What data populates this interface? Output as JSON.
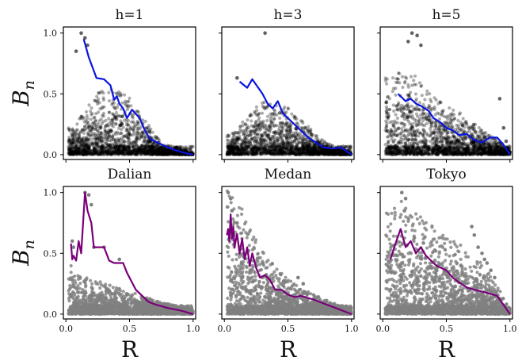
{
  "chart_data": [
    {
      "type": "scatter",
      "title": "h=1",
      "xlim": [
        -0.02,
        1.02
      ],
      "ylim": [
        -0.04,
        1.05
      ],
      "xticks": [
        0.0,
        0.5,
        1.0
      ],
      "xticklabels": [
        "",
        "",
        ""
      ],
      "yticks": [
        0.0,
        0.5,
        1.0
      ],
      "yticklabels": [
        "0.0",
        "0.5",
        "1.0"
      ],
      "xlabel": "",
      "ylabel": "B_n",
      "ylabel_main": "B",
      "ylabel_sub": "n",
      "point_color": "#000000",
      "line_color": "#0a14e0",
      "envelope_x": [
        0.05,
        0.3,
        0.5,
        0.62,
        0.75,
        1.0
      ],
      "envelope_y": [
        0.14,
        0.36,
        0.3,
        0.18,
        0.06,
        0.01
      ],
      "isolated_points": [
        [
          0.12,
          1.0
        ],
        [
          0.15,
          0.96
        ],
        [
          0.17,
          0.9
        ],
        [
          0.08,
          0.85
        ]
      ],
      "line": {
        "x": [
          0.14,
          0.18,
          0.24,
          0.3,
          0.35,
          0.38,
          0.4,
          0.42,
          0.45,
          0.48,
          0.52,
          0.58,
          0.62,
          0.66,
          0.72,
          0.8,
          0.88,
          0.95,
          1.0
        ],
        "y": [
          0.95,
          0.8,
          0.63,
          0.62,
          0.57,
          0.45,
          0.48,
          0.42,
          0.38,
          0.3,
          0.37,
          0.3,
          0.2,
          0.13,
          0.1,
          0.06,
          0.03,
          0.01,
          0.0
        ]
      }
    },
    {
      "type": "scatter",
      "title": "h=3",
      "xlim": [
        -0.02,
        1.02
      ],
      "ylim": [
        -0.04,
        1.05
      ],
      "xticks": [
        0.0,
        0.5,
        1.0
      ],
      "xticklabels": [
        "",
        "",
        ""
      ],
      "yticks": [
        0.0,
        0.5,
        1.0
      ],
      "yticklabels": [
        "",
        "",
        ""
      ],
      "xlabel": "",
      "ylabel": "",
      "point_color": "#000000",
      "line_color": "#0a14e0",
      "envelope_x": [
        0.05,
        0.3,
        0.5,
        0.65,
        0.8,
        1.0
      ],
      "envelope_y": [
        0.1,
        0.28,
        0.24,
        0.15,
        0.06,
        0.01
      ],
      "isolated_points": [
        [
          0.32,
          1.0
        ],
        [
          0.1,
          0.63
        ],
        [
          0.95,
          0.03
        ],
        [
          0.98,
          0.01
        ]
      ],
      "line": {
        "x": [
          0.12,
          0.18,
          0.22,
          0.26,
          0.3,
          0.34,
          0.38,
          0.42,
          0.46,
          0.5,
          0.54,
          0.58,
          0.62,
          0.66,
          0.72,
          0.78,
          0.85,
          0.92,
          0.97,
          1.0
        ],
        "y": [
          0.6,
          0.55,
          0.62,
          0.56,
          0.5,
          0.42,
          0.38,
          0.44,
          0.34,
          0.3,
          0.26,
          0.22,
          0.18,
          0.14,
          0.1,
          0.06,
          0.05,
          0.06,
          0.02,
          0.0
        ]
      }
    },
    {
      "type": "scatter",
      "title": "h=5",
      "xlim": [
        -0.02,
        1.02
      ],
      "ylim": [
        -0.04,
        1.05
      ],
      "xticks": [
        0.0,
        0.5,
        1.0
      ],
      "xticklabels": [
        "",
        "",
        ""
      ],
      "yticks": [
        0.0,
        0.5,
        1.0
      ],
      "yticklabels": [
        "",
        "",
        ""
      ],
      "xlabel": "",
      "ylabel": "",
      "point_color": "#000000",
      "line_color": "#0a14e0",
      "envelope_x": [
        0.03,
        0.2,
        0.4,
        0.6,
        0.8,
        1.0
      ],
      "envelope_y": [
        0.4,
        0.45,
        0.3,
        0.22,
        0.12,
        0.03
      ],
      "isolated_points": [
        [
          0.23,
          1.0
        ],
        [
          0.27,
          0.98
        ],
        [
          0.2,
          0.93
        ],
        [
          0.3,
          0.9
        ],
        [
          0.92,
          0.46
        ],
        [
          0.95,
          0.22
        ],
        [
          0.97,
          0.11
        ],
        [
          0.98,
          0.05
        ],
        [
          1.0,
          0.02
        ]
      ],
      "line": {
        "x": [
          0.12,
          0.18,
          0.22,
          0.26,
          0.3,
          0.36,
          0.4,
          0.46,
          0.5,
          0.55,
          0.6,
          0.66,
          0.72,
          0.78,
          0.84,
          0.9,
          0.95,
          1.0
        ],
        "y": [
          0.5,
          0.44,
          0.46,
          0.42,
          0.4,
          0.36,
          0.3,
          0.26,
          0.22,
          0.2,
          0.16,
          0.17,
          0.12,
          0.1,
          0.14,
          0.14,
          0.08,
          0.0
        ]
      }
    },
    {
      "type": "scatter",
      "title": "Dalian",
      "xlim": [
        -0.02,
        1.02
      ],
      "ylim": [
        -0.04,
        1.05
      ],
      "xticks": [
        0.0,
        0.5,
        1.0
      ],
      "xticklabels": [
        "0.0",
        "0.5",
        "1.0"
      ],
      "yticks": [
        0.0,
        0.5,
        1.0
      ],
      "yticklabels": [
        "0.0",
        "0.5",
        "1.0"
      ],
      "xlabel": "R",
      "ylabel": "B_n",
      "ylabel_main": "B",
      "ylabel_sub": "n",
      "point_color": "#808080",
      "line_color": "#7a007a",
      "envelope_x": [
        0.02,
        0.1,
        0.3,
        0.5,
        0.7,
        1.0
      ],
      "envelope_y": [
        0.3,
        0.2,
        0.16,
        0.12,
        0.07,
        0.02
      ],
      "isolated_points": [
        [
          0.15,
          1.0
        ],
        [
          0.18,
          0.98
        ],
        [
          0.2,
          0.9
        ],
        [
          0.05,
          0.6
        ],
        [
          0.06,
          0.55
        ],
        [
          0.22,
          0.55
        ],
        [
          0.3,
          0.55
        ],
        [
          0.42,
          0.45
        ]
      ],
      "line": {
        "x": [
          0.04,
          0.05,
          0.06,
          0.08,
          0.1,
          0.12,
          0.15,
          0.17,
          0.2,
          0.22,
          0.25,
          0.3,
          0.34,
          0.38,
          0.45,
          0.48,
          0.55,
          0.6,
          0.65,
          0.7,
          0.8,
          0.9,
          1.0
        ],
        "y": [
          0.58,
          0.45,
          0.48,
          0.44,
          0.6,
          0.5,
          1.0,
          0.85,
          0.75,
          0.55,
          0.55,
          0.55,
          0.44,
          0.42,
          0.42,
          0.34,
          0.2,
          0.15,
          0.1,
          0.08,
          0.05,
          0.03,
          0.0
        ]
      }
    },
    {
      "type": "scatter",
      "title": "Medan",
      "xlim": [
        -0.02,
        1.02
      ],
      "ylim": [
        -0.04,
        1.05
      ],
      "xticks": [
        0.0,
        0.5,
        1.0
      ],
      "xticklabels": [
        "0.0",
        "0.5",
        "1.0"
      ],
      "yticks": [
        0.0,
        0.5,
        1.0
      ],
      "yticklabels": [
        "",
        "",
        ""
      ],
      "xlabel": "R",
      "ylabel": "",
      "point_color": "#808080",
      "line_color": "#7a007a",
      "envelope_x": [
        0.02,
        0.1,
        0.2,
        0.35,
        0.5,
        0.7,
        0.85,
        1.0
      ],
      "envelope_y": [
        0.7,
        0.6,
        0.45,
        0.28,
        0.18,
        0.1,
        0.06,
        0.02
      ],
      "isolated_points": [
        [
          0.03,
          1.0
        ],
        [
          0.05,
          0.95
        ],
        [
          0.06,
          0.85
        ],
        [
          0.1,
          0.75
        ],
        [
          0.58,
          0.3
        ],
        [
          0.62,
          0.25
        ]
      ],
      "line": {
        "x": [
          0.02,
          0.03,
          0.04,
          0.05,
          0.06,
          0.07,
          0.08,
          0.1,
          0.12,
          0.14,
          0.16,
          0.18,
          0.2,
          0.22,
          0.25,
          0.28,
          0.32,
          0.36,
          0.4,
          0.45,
          0.5,
          0.55,
          0.6,
          0.7,
          0.8,
          0.9,
          1.0
        ],
        "y": [
          0.65,
          0.7,
          0.6,
          0.82,
          0.62,
          0.72,
          0.55,
          0.66,
          0.5,
          0.62,
          0.45,
          0.55,
          0.4,
          0.5,
          0.38,
          0.3,
          0.32,
          0.28,
          0.2,
          0.2,
          0.16,
          0.14,
          0.15,
          0.12,
          0.08,
          0.04,
          0.0
        ]
      }
    },
    {
      "type": "scatter",
      "title": "Tokyo",
      "xlim": [
        -0.02,
        1.02
      ],
      "ylim": [
        -0.04,
        1.05
      ],
      "xticks": [
        0.0,
        0.5,
        1.0
      ],
      "xticklabels": [
        "0.0",
        "0.5",
        "1.0"
      ],
      "yticks": [
        0.0,
        0.5,
        1.0
      ],
      "yticklabels": [
        "",
        "",
        ""
      ],
      "xlabel": "R",
      "ylabel": "",
      "point_color": "#808080",
      "line_color": "#7a007a",
      "envelope_x": [
        0.03,
        0.15,
        0.3,
        0.5,
        0.7,
        0.85,
        1.0
      ],
      "envelope_y": [
        0.55,
        0.6,
        0.5,
        0.4,
        0.32,
        0.2,
        0.03
      ],
      "isolated_points": [
        [
          0.15,
          1.0
        ],
        [
          0.18,
          0.95
        ],
        [
          0.17,
          0.85
        ],
        [
          0.7,
          0.72
        ],
        [
          0.72,
          0.65
        ],
        [
          0.75,
          0.55
        ],
        [
          0.78,
          0.5
        ],
        [
          0.8,
          0.45
        ],
        [
          0.82,
          0.42
        ],
        [
          0.85,
          0.36
        ],
        [
          0.88,
          0.3
        ]
      ],
      "line": {
        "x": [
          0.06,
          0.1,
          0.14,
          0.18,
          0.22,
          0.26,
          0.3,
          0.34,
          0.38,
          0.42,
          0.46,
          0.5,
          0.55,
          0.6,
          0.66,
          0.72,
          0.8,
          0.9,
          1.0
        ],
        "y": [
          0.45,
          0.58,
          0.7,
          0.55,
          0.6,
          0.5,
          0.55,
          0.48,
          0.44,
          0.4,
          0.38,
          0.36,
          0.3,
          0.26,
          0.22,
          0.2,
          0.18,
          0.15,
          0.0
        ]
      }
    }
  ]
}
